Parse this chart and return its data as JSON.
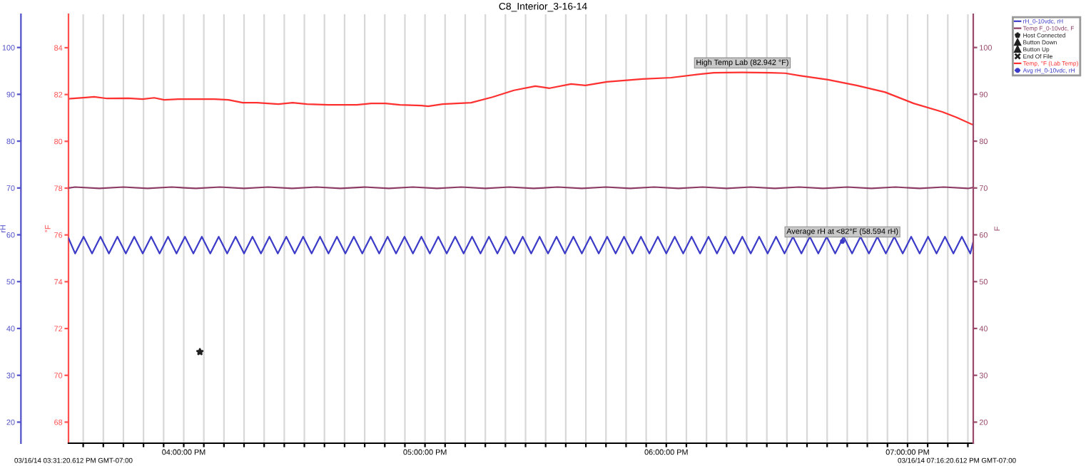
{
  "chart_data": {
    "type": "line",
    "title": "C8_Interior_3-16-14",
    "ylabel": "rH",
    "y2label": "F",
    "y3label": "°F",
    "xlim": [
      15.5224,
      19.2723
    ],
    "xticks": [
      {
        "value": 15.5833,
        "label": null
      },
      {
        "value": 15.6667,
        "label": null
      },
      {
        "value": 15.75,
        "label": null
      },
      {
        "value": 15.8333,
        "label": null
      },
      {
        "value": 15.9167,
        "label": null
      },
      {
        "value": 16,
        "label": "04:00:00 PM"
      },
      {
        "value": 16.0833,
        "label": null
      },
      {
        "value": 16.1667,
        "label": null
      },
      {
        "value": 16.25,
        "label": null
      },
      {
        "value": 16.3333,
        "label": null
      },
      {
        "value": 16.4167,
        "label": null
      },
      {
        "value": 16.5,
        "label": null
      },
      {
        "value": 16.5833,
        "label": null
      },
      {
        "value": 16.6667,
        "label": null
      },
      {
        "value": 16.75,
        "label": null
      },
      {
        "value": 16.8333,
        "label": null
      },
      {
        "value": 16.9167,
        "label": null
      },
      {
        "value": 17,
        "label": "05:00:00 PM"
      },
      {
        "value": 17.0833,
        "label": null
      },
      {
        "value": 17.1667,
        "label": null
      },
      {
        "value": 17.25,
        "label": null
      },
      {
        "value": 17.3333,
        "label": null
      },
      {
        "value": 17.4167,
        "label": null
      },
      {
        "value": 17.5,
        "label": null
      },
      {
        "value": 17.5833,
        "label": null
      },
      {
        "value": 17.6667,
        "label": null
      },
      {
        "value": 17.75,
        "label": null
      },
      {
        "value": 17.8333,
        "label": null
      },
      {
        "value": 17.9167,
        "label": null
      },
      {
        "value": 18,
        "label": "06:00:00 PM"
      },
      {
        "value": 18.0833,
        "label": null
      },
      {
        "value": 18.1667,
        "label": null
      },
      {
        "value": 18.25,
        "label": null
      },
      {
        "value": 18.3333,
        "label": null
      },
      {
        "value": 18.4167,
        "label": null
      },
      {
        "value": 18.5,
        "label": null
      },
      {
        "value": 18.5833,
        "label": null
      },
      {
        "value": 18.6667,
        "label": null
      },
      {
        "value": 18.75,
        "label": null
      },
      {
        "value": 18.8333,
        "label": null
      },
      {
        "value": 18.9167,
        "label": null
      },
      {
        "value": 19,
        "label": "07:00:00 PM"
      },
      {
        "value": 19.0833,
        "label": null
      },
      {
        "value": 19.1667,
        "label": null
      },
      {
        "value": 19.25,
        "label": null
      }
    ],
    "ylim": [
      15.5,
      107.1
    ],
    "yticks": [
      20,
      30,
      40,
      50,
      60,
      70,
      80,
      90,
      100
    ],
    "y2lim": [
      15.5,
      107.1
    ],
    "y2ticks": [
      20,
      30,
      40,
      50,
      60,
      70,
      80,
      90,
      100
    ],
    "y3lim": [
      67.1,
      85.43
    ],
    "y3ticks": [
      68,
      70,
      72,
      74,
      76,
      78,
      80,
      82,
      84
    ],
    "grid": "x",
    "legend": "top right",
    "annotations": [
      "03/16/14 03:31:20.612 PM GMT-07:00",
      "03/16/14 07:16:20.612 PM GMT-07:00"
    ],
    "series": [
      {
        "name": "rH_0-10vdc, rH",
        "color": "#3c3cc8",
        "axis": "y",
        "marker": "none",
        "line_style": "solid",
        "x": [
          15.5224,
          15.55,
          15.585,
          15.62,
          15.655,
          15.69,
          15.725,
          15.76,
          15.795,
          15.83,
          15.865,
          15.9,
          15.935,
          15.97,
          16.005,
          16.04,
          16.075,
          16.11,
          16.145,
          16.18,
          16.215,
          16.25,
          16.285,
          16.32,
          16.355,
          16.39,
          16.425,
          16.46,
          16.495,
          16.53,
          16.565,
          16.6,
          16.635,
          16.67,
          16.705,
          16.74,
          16.775,
          16.81,
          16.845,
          16.88,
          16.915,
          16.95,
          16.985,
          17.02,
          17.055,
          17.09,
          17.125,
          17.16,
          17.195,
          17.23,
          17.265,
          17.3,
          17.335,
          17.37,
          17.405,
          17.44,
          17.475,
          17.51,
          17.545,
          17.58,
          17.615,
          17.65,
          17.685,
          17.72,
          17.755,
          17.79,
          17.825,
          17.86,
          17.895,
          17.93,
          17.965,
          18.0,
          18.035,
          18.07,
          18.105,
          18.14,
          18.175,
          18.21,
          18.245,
          18.28,
          18.315,
          18.35,
          18.385,
          18.42,
          18.455,
          18.49,
          18.525,
          18.56,
          18.595,
          18.63,
          18.665,
          18.7,
          18.735,
          18.77,
          18.805,
          18.84,
          18.875,
          18.91,
          18.945,
          18.98,
          19.015,
          19.05,
          19.085,
          19.12,
          19.155,
          19.19,
          19.225,
          19.26,
          19.2723
        ],
        "values": [
          59.3,
          56.0,
          59.6,
          56.0,
          59.6,
          56.0,
          59.6,
          56.0,
          59.6,
          56.0,
          59.6,
          56.0,
          59.6,
          56.0,
          59.6,
          56.0,
          59.6,
          56.0,
          59.6,
          56.0,
          59.6,
          56.0,
          59.6,
          56.0,
          59.6,
          56.0,
          59.6,
          56.0,
          59.6,
          56.0,
          59.6,
          56.0,
          59.6,
          56.0,
          59.6,
          56.0,
          59.6,
          56.0,
          59.6,
          56.0,
          59.6,
          56.0,
          59.6,
          56.0,
          59.6,
          56.0,
          59.6,
          56.0,
          59.6,
          56.0,
          59.6,
          56.0,
          59.6,
          56.0,
          59.6,
          56.0,
          59.6,
          56.0,
          59.6,
          56.0,
          59.6,
          56.0,
          59.6,
          56.0,
          59.6,
          56.0,
          59.6,
          56.0,
          59.6,
          56.0,
          59.6,
          56.0,
          59.6,
          56.0,
          59.6,
          56.0,
          59.6,
          56.0,
          59.6,
          56.0,
          59.6,
          56.0,
          59.6,
          56.0,
          59.6,
          56.0,
          59.6,
          56.0,
          59.6,
          56.0,
          59.6,
          56.0,
          59.6,
          56.0,
          59.6,
          56.0,
          59.6,
          56.0,
          59.6,
          56.0,
          59.6,
          56.0,
          59.6,
          56.0,
          59.6,
          56.0,
          59.6,
          56.0,
          58.5
        ]
      },
      {
        "name": "Temp F_0-10vdc, F",
        "color": "#8c3c64",
        "axis": "y2",
        "marker": "none",
        "line_style": "solid",
        "x": [
          15.5224,
          15.55,
          15.65,
          15.75,
          15.85,
          15.95,
          16.05,
          16.15,
          16.25,
          16.35,
          16.45,
          16.55,
          16.65,
          16.75,
          16.85,
          16.95,
          17.05,
          17.15,
          17.25,
          17.35,
          17.45,
          17.55,
          17.65,
          17.75,
          17.85,
          17.95,
          18.05,
          18.15,
          18.25,
          18.35,
          18.45,
          18.55,
          18.65,
          18.75,
          18.85,
          18.95,
          19.05,
          19.15,
          19.25,
          19.2723
        ],
        "values": [
          70.0,
          70.2,
          69.9,
          70.2,
          69.9,
          70.2,
          69.9,
          70.2,
          69.9,
          70.2,
          69.9,
          70.2,
          69.9,
          70.2,
          69.9,
          70.2,
          69.9,
          70.2,
          69.9,
          70.2,
          69.9,
          70.2,
          69.9,
          70.2,
          69.9,
          70.2,
          69.9,
          70.2,
          69.9,
          70.2,
          69.9,
          70.2,
          69.9,
          70.2,
          69.9,
          70.2,
          69.9,
          70.2,
          69.9,
          70.1
        ]
      },
      {
        "name": "Host Connected",
        "type": "scatter",
        "color": "#202020",
        "axis": "y",
        "marker": "star",
        "x": [
          16.067
        ],
        "values": [
          35
        ]
      },
      {
        "name": "Button Down",
        "type": "scatter",
        "color": "#202020",
        "axis": "y",
        "marker": "triangle"
      },
      {
        "name": "Button Up",
        "type": "scatter",
        "color": "#202020",
        "axis": "y",
        "marker": "triangle"
      },
      {
        "name": "End Of File",
        "type": "scatter",
        "color": "#202020",
        "axis": "y",
        "marker": "cross"
      },
      {
        "name": "Temp, °F (Lab Temp)",
        "color": "#ff3030",
        "axis": "y3",
        "marker": "none",
        "line_style": "solid",
        "x": [
          15.5224,
          15.5934,
          15.6289,
          15.6822,
          15.7709,
          15.8301,
          15.8774,
          15.9189,
          15.9781,
          16.0668,
          16.126,
          16.1852,
          16.2444,
          16.3035,
          16.3923,
          16.4515,
          16.5107,
          16.5994,
          16.7178,
          16.7769,
          16.8361,
          16.8953,
          16.984,
          17.0135,
          17.0727,
          17.1911,
          17.2798,
          17.3686,
          17.4573,
          17.5165,
          17.6053,
          17.6645,
          17.7532,
          17.9012,
          18.0195,
          18.1379,
          18.197,
          18.3154,
          18.4337,
          18.4929,
          18.5521,
          18.6704,
          18.7888,
          18.9071,
          19.0254,
          19.1438,
          19.203,
          19.2723
        ],
        "values": [
          81.82,
          81.87,
          81.9,
          81.83,
          81.84,
          81.8,
          81.86,
          81.77,
          81.8,
          81.8,
          81.8,
          81.77,
          81.65,
          81.65,
          81.59,
          81.65,
          81.59,
          81.56,
          81.56,
          81.62,
          81.62,
          81.56,
          81.53,
          81.5,
          81.59,
          81.65,
          81.89,
          82.18,
          82.36,
          82.27,
          82.45,
          82.39,
          82.54,
          82.66,
          82.72,
          82.87,
          82.93,
          82.942,
          82.93,
          82.91,
          82.81,
          82.63,
          82.39,
          82.1,
          81.62,
          81.26,
          81.02,
          80.7
        ],
        "value_labels": [
          null,
          null,
          null,
          null,
          null,
          null,
          null,
          null,
          null,
          null,
          null,
          null,
          null,
          null,
          null,
          null,
          null,
          null,
          null,
          null,
          null,
          null,
          null,
          null,
          null,
          null,
          null,
          null,
          null,
          null,
          null,
          null,
          null,
          null,
          null,
          null,
          null,
          "High Temp Lab (82.942 °F)",
          null,
          null,
          null,
          null,
          null,
          null,
          null,
          null,
          null,
          null
        ]
      },
      {
        "name": "Avg rH_0-10vdc, rH",
        "color": "#3c3cc8",
        "axis": "y",
        "marker": "circle",
        "line_style": "dotted",
        "x": [
          18.73
        ],
        "values": [
          58.594
        ],
        "value_labels": [
          "Average rH at <82°F (58.594 rH)"
        ]
      }
    ]
  }
}
